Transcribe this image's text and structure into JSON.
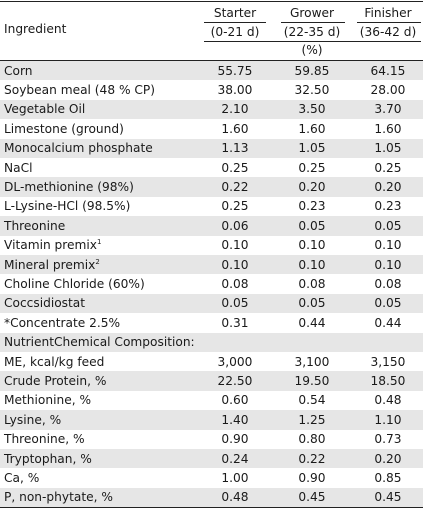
{
  "header": {
    "ingredient": "Ingredient",
    "starter": "Starter",
    "starter_period": "(0-21 d)",
    "grower": "Grower",
    "grower_period": "(22-35 d)",
    "finisher": "Finisher",
    "finisher_period": "(36-42 d)",
    "unit": "(%)"
  },
  "rows": [
    {
      "name": "Corn",
      "v": [
        "55.75",
        "59.85",
        "64.15"
      ]
    },
    {
      "name": "Soybean meal (48 % CP)",
      "v": [
        "38.00",
        "32.50",
        "28.00"
      ]
    },
    {
      "name": "Vegetable Oil",
      "v": [
        "2.10",
        "3.50",
        "3.70"
      ]
    },
    {
      "name": "Limestone (ground)",
      "v": [
        "1.60",
        "1.60",
        "1.60"
      ]
    },
    {
      "name": "Monocalcium phosphate",
      "v": [
        "1.13",
        "1.05",
        "1.05"
      ]
    },
    {
      "name": "NaCl",
      "v": [
        "0.25",
        "0.25",
        "0.25"
      ]
    },
    {
      "name": "DL-methionine (98%)",
      "v": [
        "0.22",
        "0.20",
        "0.20"
      ]
    },
    {
      "name": "L-Lysine-HCl (98.5%)",
      "v": [
        "0.25",
        "0.23",
        "0.23"
      ]
    },
    {
      "name": "Threonine",
      "v": [
        "0.06",
        "0.05",
        "0.05"
      ]
    },
    {
      "name": "Vitamin premix",
      "sup": "1",
      "v": [
        "0.10",
        "0.10",
        "0.10"
      ]
    },
    {
      "name": "Mineral premix",
      "sup": "2",
      "v": [
        "0.10",
        "0.10",
        "0.10"
      ]
    },
    {
      "name": "Choline Chloride (60%)",
      "v": [
        "0.08",
        "0.08",
        "0.08"
      ]
    },
    {
      "name": "Coccsidiostat",
      "v": [
        "0.05",
        "0.05",
        "0.05"
      ]
    },
    {
      "name": "*Concentrate 2.5%",
      "v": [
        "0.31",
        "0.44",
        "0.44"
      ]
    },
    {
      "name": "NutrientChemical Composition:",
      "v": [
        "",
        "",
        ""
      ]
    },
    {
      "name": "ME, kcal/kg feed",
      "v": [
        "3,000",
        "3,100",
        "3,150"
      ]
    },
    {
      "name": "Crude Protein, %",
      "v": [
        "22.50",
        "19.50",
        "18.50"
      ]
    },
    {
      "name": "Methionine, %",
      "v": [
        "0.60",
        "0.54",
        "0.48"
      ]
    },
    {
      "name": "Lysine, %",
      "v": [
        "1.40",
        "1.25",
        "1.10"
      ]
    },
    {
      "name": "Threonine, %",
      "v": [
        "0.90",
        "0.80",
        "0.73"
      ]
    },
    {
      "name": "Tryptophan, %",
      "v": [
        "0.24",
        "0.22",
        "0.20"
      ]
    },
    {
      "name": "Ca, %",
      "v": [
        "1.00",
        "0.90",
        "0.85"
      ]
    },
    {
      "name": "P, non-phytate, %",
      "v": [
        "0.48",
        "0.45",
        "0.45"
      ]
    }
  ]
}
